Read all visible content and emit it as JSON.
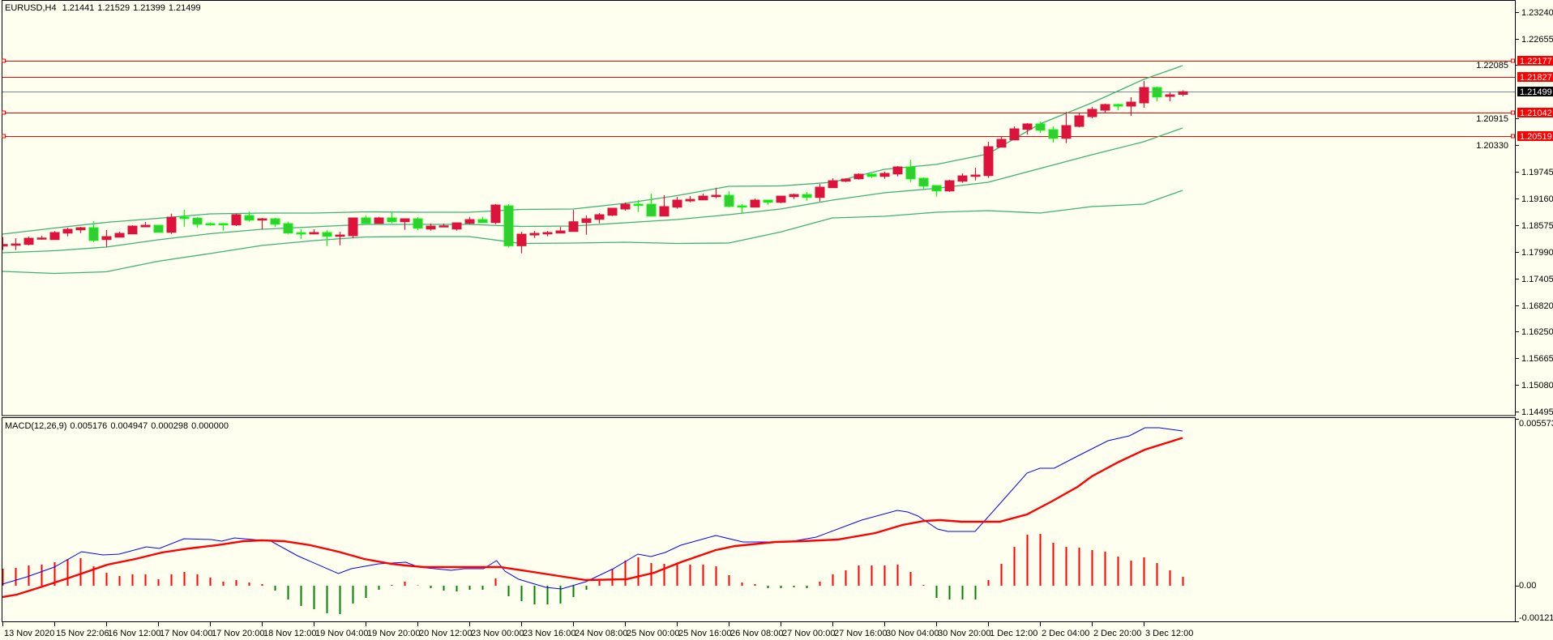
{
  "header": {
    "symbol": "EURUSD,H4",
    "open": "1.21441",
    "high": "1.21529",
    "low": "1.21399",
    "close": "1.21499"
  },
  "macd_label": {
    "name": "MACD(12,26,9)",
    "values": [
      "0.005176",
      "0.004947",
      "0.000298",
      "0.000000"
    ]
  },
  "colors": {
    "background": "#fffff0",
    "bull_candle": "#dc143c",
    "bear_candle_fill": "#32cd32",
    "bear_candle_edge": "#00ff00",
    "bands": "#3cb371",
    "level_line": "#ff0000",
    "bid_line": "#778899",
    "macd_line": "#0000ff",
    "signal_line": "#ff0000",
    "hist_pos": "#ff0000",
    "hist_neg": "#008000"
  },
  "price_axis": {
    "ticks": [
      "1.23240",
      "1.22655",
      "1.22085",
      "1.20915",
      "1.20330",
      "1.19745",
      "1.19160",
      "1.18575",
      "1.17990",
      "1.17405",
      "1.16820",
      "1.16250",
      "1.15665",
      "1.15080",
      "1.14495"
    ],
    "current": "1.21499"
  },
  "levels": [
    {
      "label": "1.22177",
      "value": 1.22177,
      "markers": true
    },
    {
      "label": "1.21827",
      "value": 1.21827,
      "markers": false
    },
    {
      "label": "1.21042",
      "value": 1.21042,
      "markers": true
    },
    {
      "label": "1.20519",
      "value": 1.20519,
      "markers": true
    }
  ],
  "macd_axis": {
    "top": "0.005573",
    "zero": "0.00",
    "bottom": "-0.001216"
  },
  "time_axis": [
    "13 Nov 2020",
    "15 Nov 22:06",
    "16 Nov 12:00",
    "17 Nov 04:00",
    "17 Nov 20:00",
    "18 Nov 12:00",
    "19 Nov 04:00",
    "19 Nov 20:00",
    "20 Nov 12:00",
    "23 Nov 00:00",
    "23 Nov 16:00",
    "24 Nov 08:00",
    "25 Nov 00:00",
    "25 Nov 16:00",
    "26 Nov 08:00",
    "27 Nov 00:00",
    "27 Nov 16:00",
    "30 Nov 04:00",
    "30 Nov 20:00",
    "1 Dec 12:00",
    "2 Dec 04:00",
    "2 Dec 20:00",
    "3 Dec 12:00"
  ],
  "chart_data": {
    "type": "candlestick",
    "title": "EURUSD,H4",
    "ylim": [
      1.14495,
      1.2324
    ],
    "candles_ohlc": [
      [
        1.18121,
        1.18316,
        1.18033,
        1.18157
      ],
      [
        1.18139,
        1.18293,
        1.18033,
        1.18169
      ],
      [
        1.18157,
        1.18329,
        1.18139,
        1.18293
      ],
      [
        1.18276,
        1.18347,
        1.18263,
        1.18298
      ],
      [
        1.18263,
        1.18448,
        1.18263,
        1.18418
      ],
      [
        1.18405,
        1.18524,
        1.18334,
        1.18489
      ],
      [
        1.18476,
        1.18542,
        1.18405,
        1.18524
      ],
      [
        1.18524,
        1.18666,
        1.1821,
        1.18245
      ],
      [
        1.18263,
        1.18471,
        1.18104,
        1.18329
      ],
      [
        1.18316,
        1.18435,
        1.18316,
        1.184
      ],
      [
        1.18387,
        1.18577,
        1.18387,
        1.18559
      ],
      [
        1.18542,
        1.18648,
        1.18542,
        1.18577
      ],
      [
        1.18577,
        1.18577,
        1.18423,
        1.18423
      ],
      [
        1.18423,
        1.18831,
        1.18387,
        1.18754
      ],
      [
        1.18754,
        1.18914,
        1.18547,
        1.18724
      ],
      [
        1.18731,
        1.18754,
        1.18529,
        1.186
      ],
      [
        1.18613,
        1.18636,
        1.18565,
        1.186
      ],
      [
        1.18613,
        1.18625,
        1.18459,
        1.1859
      ],
      [
        1.18584,
        1.18831,
        1.18559,
        1.18808
      ],
      [
        1.1879,
        1.18873,
        1.18654,
        1.18689
      ],
      [
        1.18689,
        1.18737,
        1.18483,
        1.18719
      ],
      [
        1.18719,
        1.18737,
        1.18542,
        1.186
      ],
      [
        1.18613,
        1.18654,
        1.18387,
        1.18405
      ],
      [
        1.18412,
        1.18489,
        1.1828,
        1.18387
      ],
      [
        1.18387,
        1.18489,
        1.18376,
        1.18418
      ],
      [
        1.18418,
        1.18471,
        1.18121,
        1.18334
      ],
      [
        1.18334,
        1.18435,
        1.18139,
        1.18364
      ],
      [
        1.18347,
        1.18737,
        1.18298,
        1.18737
      ],
      [
        1.18737,
        1.1879,
        1.18618,
        1.18618
      ],
      [
        1.18618,
        1.1876,
        1.18618,
        1.18737
      ],
      [
        1.18737,
        1.18866,
        1.18618,
        1.18654
      ],
      [
        1.18654,
        1.18719,
        1.18476,
        1.18719
      ],
      [
        1.18719,
        1.18754,
        1.18466,
        1.18512
      ],
      [
        1.18494,
        1.18613,
        1.18459,
        1.18559
      ],
      [
        1.18542,
        1.18613,
        1.18542,
        1.18565
      ],
      [
        1.18494,
        1.1863,
        1.18459,
        1.1863
      ],
      [
        1.18618,
        1.1876,
        1.186,
        1.18701
      ],
      [
        1.18701,
        1.1876,
        1.18636,
        1.18636
      ],
      [
        1.18636,
        1.19038,
        1.186,
        1.1902
      ],
      [
        1.19002,
        1.19038,
        1.18086,
        1.18128
      ],
      [
        1.18128,
        1.18435,
        1.17962,
        1.18382
      ],
      [
        1.18364,
        1.18453,
        1.18298,
        1.184
      ],
      [
        1.18387,
        1.18453,
        1.18334,
        1.18418
      ],
      [
        1.18405,
        1.18542,
        1.18405,
        1.18453
      ],
      [
        1.1844,
        1.18914,
        1.1844,
        1.18654
      ],
      [
        1.18636,
        1.1879,
        1.1837,
        1.18719
      ],
      [
        1.18707,
        1.18843,
        1.18618,
        1.18808
      ],
      [
        1.18796,
        1.1895,
        1.18778,
        1.1895
      ],
      [
        1.18932,
        1.19073,
        1.18896,
        1.19038
      ],
      [
        1.19038,
        1.19127,
        1.18866,
        1.1902
      ],
      [
        1.19038,
        1.19268,
        1.18778,
        1.18778
      ],
      [
        1.18778,
        1.19233,
        1.18778,
        1.18985
      ],
      [
        1.18973,
        1.19198,
        1.18937,
        1.19127
      ],
      [
        1.19109,
        1.19215,
        1.19079,
        1.19144
      ],
      [
        1.19132,
        1.19268,
        1.19132,
        1.19215
      ],
      [
        1.19203,
        1.19398,
        1.19167,
        1.19233
      ],
      [
        1.19233,
        1.19321,
        1.18973,
        1.1899
      ],
      [
        1.19002,
        1.19038,
        1.18831,
        1.18973
      ],
      [
        1.18973,
        1.19162,
        1.18973,
        1.19127
      ],
      [
        1.19127,
        1.19127,
        1.19026,
        1.19079
      ],
      [
        1.19079,
        1.19215,
        1.19061,
        1.19215
      ],
      [
        1.19203,
        1.19268,
        1.1915,
        1.1925
      ],
      [
        1.1925,
        1.19304,
        1.19114,
        1.19185
      ],
      [
        1.19185,
        1.19481,
        1.19097,
        1.1941
      ],
      [
        1.19398,
        1.19605,
        1.19398,
        1.19552
      ],
      [
        1.1954,
        1.19605,
        1.19522,
        1.19588
      ],
      [
        1.19593,
        1.19712,
        1.19576,
        1.19694
      ],
      [
        1.19694,
        1.19712,
        1.19611,
        1.19646
      ],
      [
        1.19646,
        1.19747,
        1.19593,
        1.19712
      ],
      [
        1.19699,
        1.19871,
        1.19646,
        1.19854
      ],
      [
        1.19854,
        1.20013,
        1.19522,
        1.19593
      ],
      [
        1.19605,
        1.19623,
        1.1938,
        1.19433
      ],
      [
        1.19446,
        1.19446,
        1.19203,
        1.19327
      ],
      [
        1.19327,
        1.1957,
        1.19309,
        1.19552
      ],
      [
        1.1954,
        1.19712,
        1.19505,
        1.19658
      ],
      [
        1.19646,
        1.19836,
        1.19558,
        1.19676
      ],
      [
        1.19664,
        1.20403,
        1.19611,
        1.20297
      ],
      [
        1.20285,
        1.20527,
        1.20285,
        1.20456
      ],
      [
        1.20444,
        1.2074,
        1.20444,
        1.20687
      ],
      [
        1.20675,
        1.20811,
        1.20563,
        1.20794
      ],
      [
        1.20794,
        1.20846,
        1.20598,
        1.20657
      ],
      [
        1.20669,
        1.2074,
        1.20385,
        1.20479
      ],
      [
        1.20479,
        1.21059,
        1.20373,
        1.20758
      ],
      [
        1.2074,
        1.21024,
        1.20722,
        1.20971
      ],
      [
        1.20953,
        1.21166,
        1.20917,
        1.21113
      ],
      [
        1.21095,
        1.21237,
        1.21024,
        1.21219
      ],
      [
        1.21219,
        1.21237,
        1.21095,
        1.21184
      ],
      [
        1.21184,
        1.21378,
        1.20971,
        1.21272
      ],
      [
        1.21254,
        1.21733,
        1.21148,
        1.21591
      ],
      [
        1.21591,
        1.21609,
        1.2129,
        1.21384
      ],
      [
        1.21396,
        1.21485,
        1.2129,
        1.21432
      ],
      [
        1.21441,
        1.21529,
        1.21399,
        1.21499
      ]
    ],
    "bollinger_bands": {
      "points_bar_mid_dev": [
        [
          0,
          1.17975,
          0.00408
        ],
        [
          4,
          1.18019,
          0.00496
        ],
        [
          8,
          1.18099,
          0.00541
        ],
        [
          12,
          1.18259,
          0.0047
        ],
        [
          16,
          1.18392,
          0.00434
        ],
        [
          20,
          1.18489,
          0.00355
        ],
        [
          24,
          1.18542,
          0.00301
        ],
        [
          28,
          1.18595,
          0.00275
        ],
        [
          32,
          1.18595,
          0.00266
        ],
        [
          36,
          1.18595,
          0.00266
        ],
        [
          40,
          1.18551,
          0.00372
        ],
        [
          44,
          1.1856,
          0.00372
        ],
        [
          48,
          1.18631,
          0.00425
        ],
        [
          52,
          1.18702,
          0.00523
        ],
        [
          56,
          1.18808,
          0.0062
        ],
        [
          60,
          1.18933,
          0.00505
        ],
        [
          64,
          1.19127,
          0.0039
        ],
        [
          68,
          1.19287,
          0.00514
        ],
        [
          72,
          1.19384,
          0.00523
        ],
        [
          76,
          1.19517,
          0.0062
        ],
        [
          80,
          1.19819,
          0.00975
        ],
        [
          84,
          1.2012,
          0.01135
        ],
        [
          88,
          1.20404,
          0.01365
        ],
        [
          91,
          1.20705,
          0.01365
        ]
      ]
    },
    "macd": {
      "ylim": [
        -0.001216,
        0.005573
      ],
      "histogram": [
        0.000569,
        0.000596,
        0.000678,
        0.000705,
        0.000786,
        0.000894,
        0.000921,
        0.00065,
        0.000434,
        0.000325,
        0.000379,
        0.000379,
        0.000217,
        0.000379,
        0.000461,
        0.000379,
        0.000271,
        0.000136,
        0.00019,
        0.000108,
        5.4e-05,
        -0.000163,
        -0.000461,
        -0.000678,
        -0.000786,
        -0.000921,
        -0.000949,
        -0.000596,
        -0.000407,
        -0.000136,
        2.7e-05,
        0.000136,
        1.4e-05,
        -8.1e-05,
        -0.000163,
        -0.00019,
        -0.000136,
        -0.000136,
        0.000244,
        -0.000352,
        -0.000515,
        -0.000623,
        -0.000623,
        -0.000596,
        -0.000379,
        -0.000136,
        0.000163,
        0.000542,
        0.00084,
        0.000949,
        0.000759,
        0.000732,
        0.000759,
        0.000705,
        0.000705,
        0.00065,
        0.000352,
        0.000108,
        5.4e-05,
        -8.1e-05,
        -8.1e-05,
        -5.4e-05,
        -8.1e-05,
        0.000136,
        0.000379,
        0.000515,
        0.000678,
        0.000678,
        0.000678,
        0.000705,
        0.000461,
        2.7e-05,
        -0.000407,
        -0.000461,
        -0.000461,
        -0.000461,
        0.00019,
        0.000732,
        0.001301,
        0.001707,
        0.001734,
        0.001436,
        0.001301,
        0.001274,
        0.001192,
        0.001138,
        0.000976,
        0.00084,
        0.000949,
        0.000759,
        0.000515,
        0.000298
      ],
      "macd_line_bar_value": [
        [
          0,
          5.4e-05
        ],
        [
          1.9,
          0.000298
        ],
        [
          4,
          0.000623
        ],
        [
          6.1,
          0.001138
        ],
        [
          7.75,
          0.00103
        ],
        [
          9,
          0.001057
        ],
        [
          11.1,
          0.001301
        ],
        [
          12.1,
          0.001247
        ],
        [
          14,
          0.001572
        ],
        [
          16.1,
          0.001545
        ],
        [
          16.9,
          0.001491
        ],
        [
          17.9,
          0.001599
        ],
        [
          20,
          0.001518
        ],
        [
          20.6,
          0.001518
        ],
        [
          22.75,
          0.001003
        ],
        [
          25.9,
          0.000407
        ],
        [
          26.9,
          0.000569
        ],
        [
          29,
          0.000732
        ],
        [
          31.1,
          0.000786
        ],
        [
          32.1,
          0.000623
        ],
        [
          34.6,
          0.000515
        ],
        [
          35.6,
          0.000569
        ],
        [
          37.1,
          0.000569
        ],
        [
          38.1,
          0.00084
        ],
        [
          38.75,
          0.000488
        ],
        [
          39.8,
          0.000217
        ],
        [
          41.9,
          -5.4e-05
        ],
        [
          43.1,
          -0.000108
        ],
        [
          45,
          0.000136
        ],
        [
          47.1,
          0.000569
        ],
        [
          49,
          0.001057
        ],
        [
          50,
          0.000976
        ],
        [
          51.1,
          0.001111
        ],
        [
          52.3,
          0.001355
        ],
        [
          55,
          0.00168
        ],
        [
          57.1,
          0.001463
        ],
        [
          60.6,
          0.001463
        ],
        [
          62.75,
          0.001626
        ],
        [
          65.25,
          0.002033
        ],
        [
          66.25,
          0.002195
        ],
        [
          69,
          0.00252
        ],
        [
          69.8,
          0.002466
        ],
        [
          70.6,
          0.002331
        ],
        [
          72.1,
          0.001897
        ],
        [
          72.9,
          0.001816
        ],
        [
          75,
          0.001816
        ],
        [
          76.9,
          0.002737
        ],
        [
          79,
          0.003767
        ],
        [
          80,
          0.00393
        ],
        [
          81.1,
          0.00393
        ],
        [
          82.9,
          0.004336
        ],
        [
          85.25,
          0.004851
        ],
        [
          86.9,
          0.005014
        ],
        [
          88.1,
          0.005285
        ],
        [
          89.2,
          0.005285
        ],
        [
          91,
          0.005176
        ]
      ],
      "signal_line_bar_value": [
        [
          0,
          -0.000379
        ],
        [
          1.1,
          -0.000298
        ],
        [
          2.9,
          -5.4e-05
        ],
        [
          5,
          0.000244
        ],
        [
          6.1,
          0.000407
        ],
        [
          8.1,
          0.000705
        ],
        [
          10.25,
          0.000894
        ],
        [
          12.3,
          0.001111
        ],
        [
          14.4,
          0.001247
        ],
        [
          16.5,
          0.001355
        ],
        [
          18.6,
          0.001491
        ],
        [
          20,
          0.001518
        ],
        [
          21.7,
          0.001491
        ],
        [
          23.75,
          0.001355
        ],
        [
          25.9,
          0.001138
        ],
        [
          27.9,
          0.000894
        ],
        [
          30,
          0.000732
        ],
        [
          31.1,
          0.000678
        ],
        [
          32.5,
          0.000623
        ],
        [
          38.4,
          0.000623
        ],
        [
          40.9,
          0.000461
        ],
        [
          42.9,
          0.000325
        ],
        [
          45,
          0.00019
        ],
        [
          48.1,
          0.000217
        ],
        [
          50.25,
          0.000434
        ],
        [
          52.3,
          0.000786
        ],
        [
          55,
          0.001192
        ],
        [
          56.5,
          0.001328
        ],
        [
          59.6,
          0.001463
        ],
        [
          61.7,
          0.001491
        ],
        [
          64.4,
          0.001545
        ],
        [
          67.3,
          0.001762
        ],
        [
          69.4,
          0.002033
        ],
        [
          71.1,
          0.002168
        ],
        [
          72.3,
          0.002195
        ],
        [
          74,
          0.002141
        ],
        [
          76.9,
          0.002141
        ],
        [
          79,
          0.002385
        ],
        [
          80.9,
          0.002818
        ],
        [
          82.9,
          0.003306
        ],
        [
          84,
          0.003659
        ],
        [
          86.1,
          0.004146
        ],
        [
          88.1,
          0.004553
        ],
        [
          91,
          0.004947
        ]
      ]
    }
  }
}
